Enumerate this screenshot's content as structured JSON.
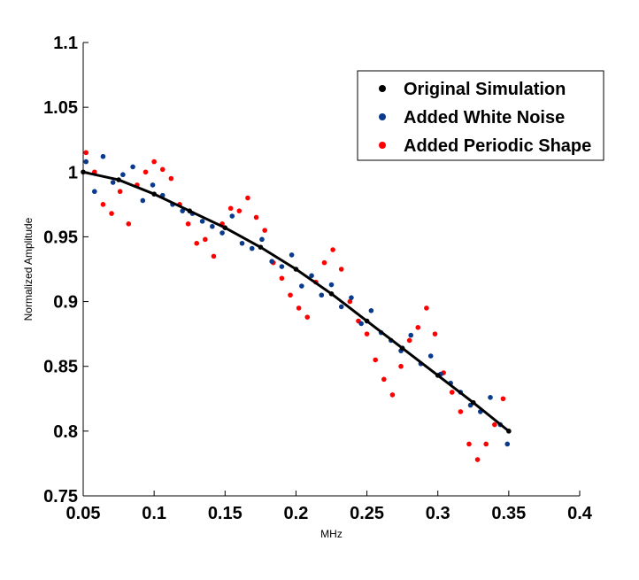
{
  "chart_data": {
    "type": "scatter",
    "xlabel": "MHz",
    "ylabel": "Normalized Amplitude",
    "xlim": [
      0.05,
      0.4
    ],
    "ylim": [
      0.75,
      1.1
    ],
    "x_ticks": [
      "0.05",
      "0.1",
      "0.15",
      "0.2",
      "0.25",
      "0.3",
      "0.35",
      "0.4"
    ],
    "y_ticks": [
      "0.75",
      "0.8",
      "0.85",
      "0.9",
      "0.95",
      "1",
      "1.05",
      "1.1"
    ],
    "grid": false,
    "legend_position": "top-right",
    "series": [
      {
        "name": "Original Simulation",
        "color": "#000000",
        "x": [
          0.05,
          0.075,
          0.1,
          0.125,
          0.15,
          0.175,
          0.2,
          0.225,
          0.25,
          0.275,
          0.3,
          0.325,
          0.35
        ],
        "y": [
          1.0,
          0.994,
          0.983,
          0.97,
          0.957,
          0.942,
          0.925,
          0.906,
          0.885,
          0.864,
          0.843,
          0.822,
          0.8
        ]
      },
      {
        "name": "Added White Noise",
        "color": "#0a3a8c",
        "x": [
          0.052,
          0.058,
          0.064,
          0.071,
          0.078,
          0.085,
          0.092,
          0.099,
          0.106,
          0.113,
          0.12,
          0.127,
          0.134,
          0.141,
          0.148,
          0.155,
          0.162,
          0.169,
          0.176,
          0.183,
          0.19,
          0.197,
          0.204,
          0.211,
          0.218,
          0.225,
          0.232,
          0.239,
          0.246,
          0.253,
          0.26,
          0.267,
          0.274,
          0.281,
          0.288,
          0.295,
          0.302,
          0.309,
          0.316,
          0.323,
          0.33,
          0.337,
          0.344,
          0.349
        ],
        "y": [
          1.008,
          0.985,
          1.012,
          0.992,
          0.998,
          1.004,
          0.978,
          0.99,
          0.982,
          0.975,
          0.97,
          0.968,
          0.962,
          0.958,
          0.953,
          0.966,
          0.945,
          0.941,
          0.948,
          0.931,
          0.927,
          0.936,
          0.912,
          0.92,
          0.905,
          0.913,
          0.896,
          0.903,
          0.883,
          0.893,
          0.876,
          0.87,
          0.862,
          0.874,
          0.852,
          0.858,
          0.844,
          0.837,
          0.83,
          0.82,
          0.815,
          0.826,
          0.805,
          0.79
        ]
      },
      {
        "name": "Added Periodic Shape",
        "color": "#ff0000",
        "x": [
          0.052,
          0.058,
          0.064,
          0.07,
          0.076,
          0.082,
          0.088,
          0.094,
          0.1,
          0.106,
          0.112,
          0.118,
          0.124,
          0.13,
          0.136,
          0.142,
          0.148,
          0.154,
          0.16,
          0.166,
          0.172,
          0.178,
          0.184,
          0.19,
          0.196,
          0.202,
          0.208,
          0.214,
          0.22,
          0.226,
          0.232,
          0.238,
          0.244,
          0.25,
          0.256,
          0.262,
          0.268,
          0.274,
          0.28,
          0.286,
          0.292,
          0.298,
          0.304,
          0.31,
          0.316,
          0.322,
          0.328,
          0.334,
          0.34,
          0.346
        ],
        "y": [
          1.015,
          1.0,
          0.975,
          0.968,
          0.985,
          0.96,
          0.99,
          1.0,
          1.008,
          1.002,
          0.995,
          0.975,
          0.96,
          0.945,
          0.948,
          0.935,
          0.96,
          0.972,
          0.97,
          0.98,
          0.965,
          0.955,
          0.93,
          0.918,
          0.905,
          0.895,
          0.888,
          0.915,
          0.93,
          0.94,
          0.925,
          0.9,
          0.885,
          0.875,
          0.855,
          0.84,
          0.828,
          0.85,
          0.87,
          0.88,
          0.895,
          0.875,
          0.845,
          0.83,
          0.815,
          0.79,
          0.778,
          0.79,
          0.805,
          0.825
        ]
      }
    ]
  }
}
